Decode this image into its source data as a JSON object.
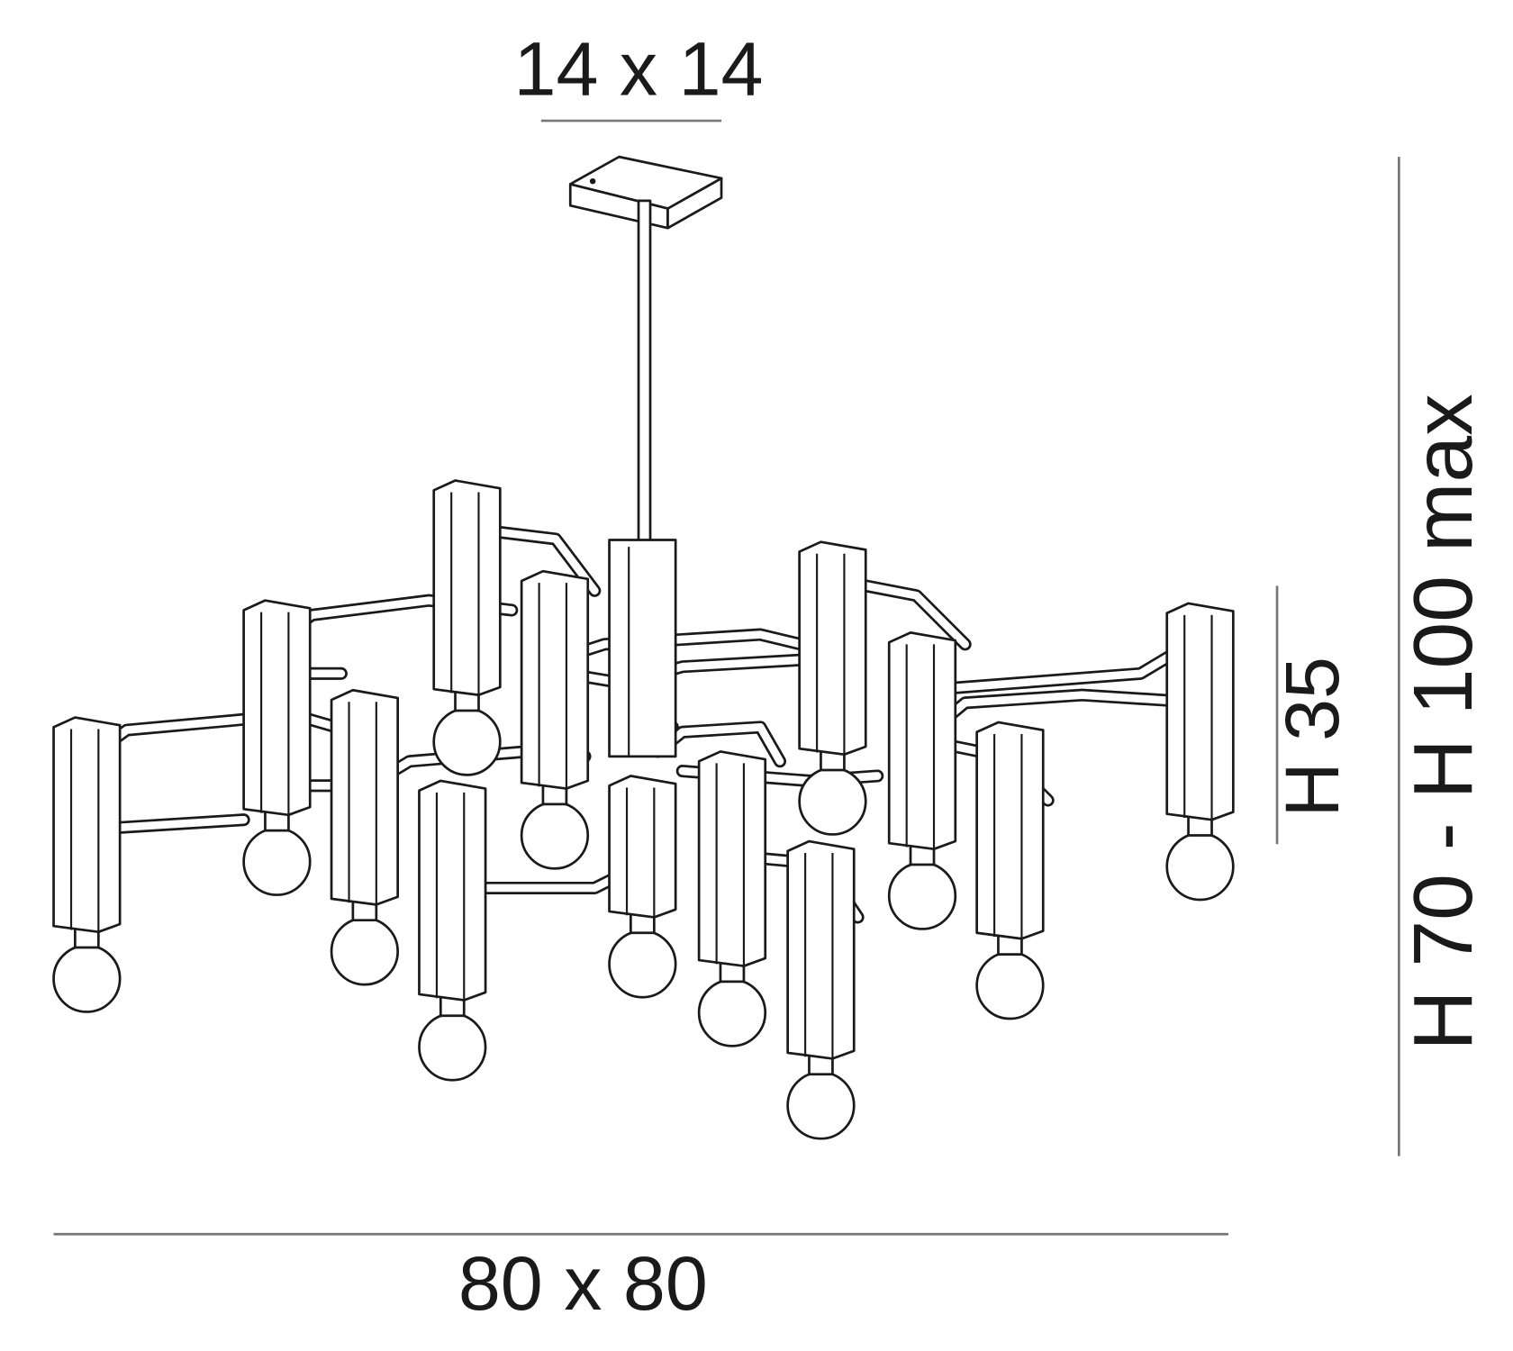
{
  "dimensions": {
    "canopy": "14 x 14",
    "width": "80 x 80",
    "body_height": "H 35",
    "total_height": "H 70 - H 100 max"
  }
}
